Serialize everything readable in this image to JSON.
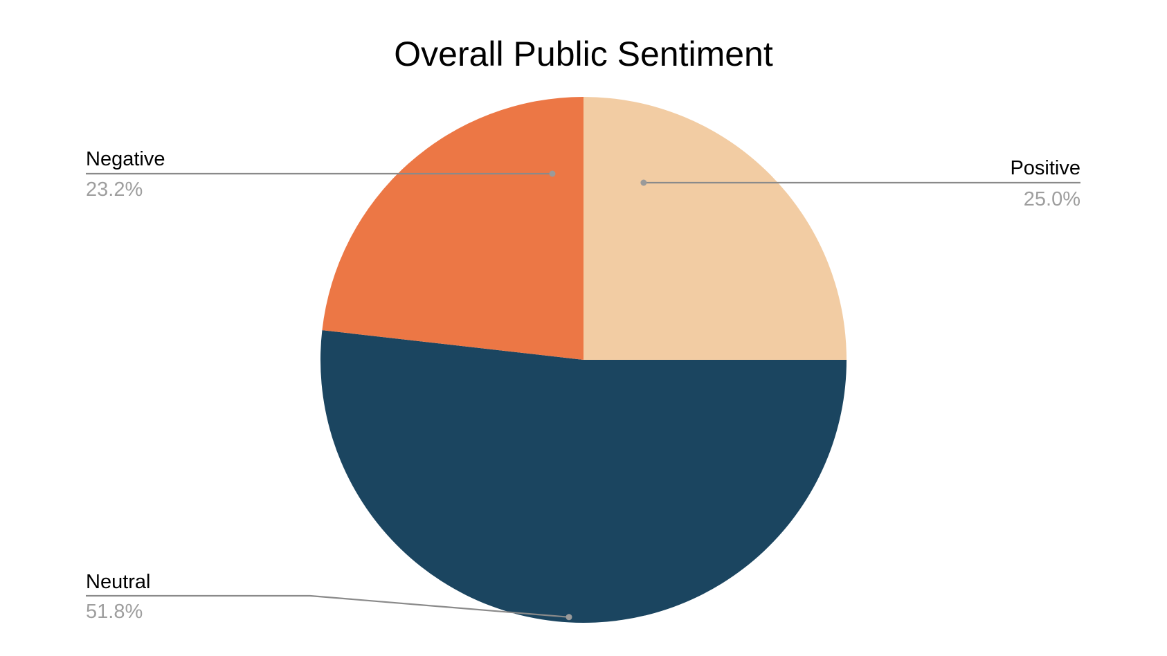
{
  "chart_data": {
    "type": "pie",
    "title": "Overall Public Sentiment",
    "slices": [
      {
        "label": "Positive",
        "value": 25.0,
        "display": "25.0%",
        "color": "#f2cca3"
      },
      {
        "label": "Neutral",
        "value": 51.8,
        "display": "51.8%",
        "color": "#1b4560"
      },
      {
        "label": "Negative",
        "value": 23.2,
        "display": "23.2%",
        "color": "#ec7745"
      }
    ],
    "start_angle_deg": 0,
    "direction": "clockwise",
    "labels": "outside-with-leader-lines",
    "legend": "none"
  }
}
